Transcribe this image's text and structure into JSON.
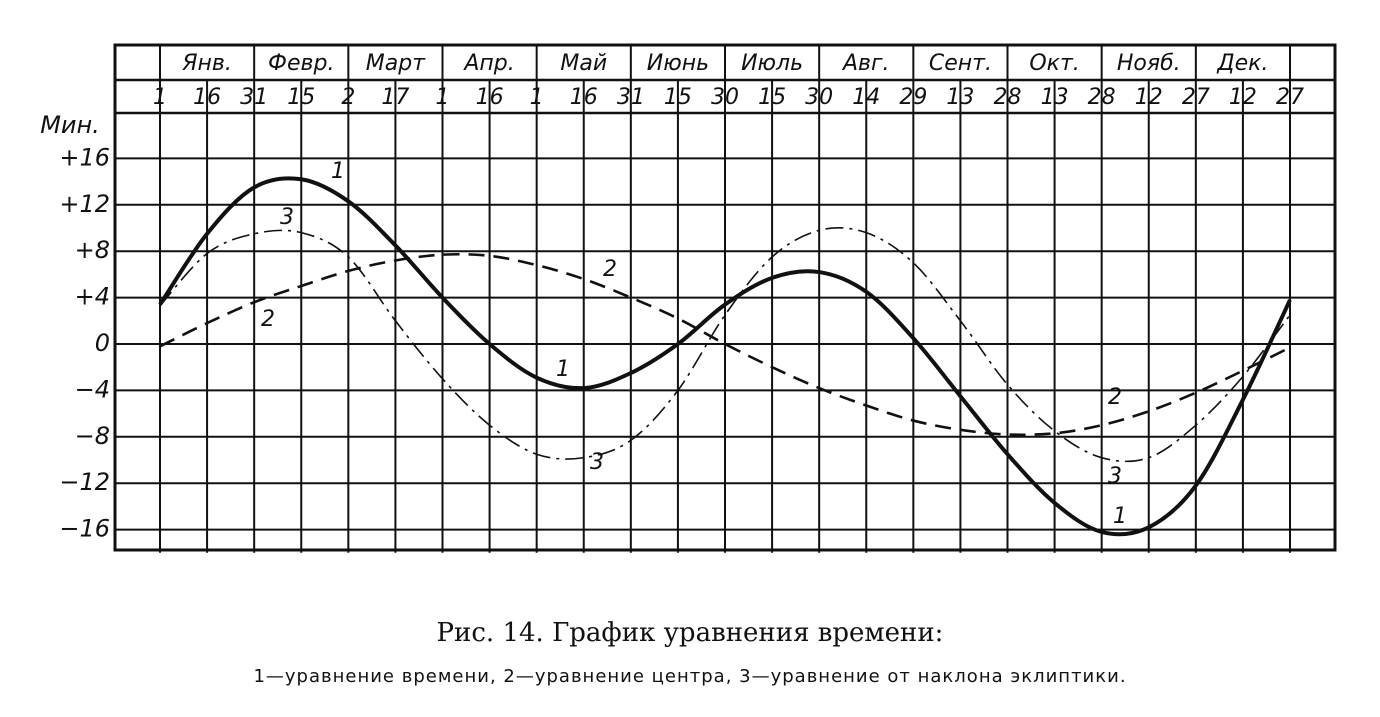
{
  "chart_data": {
    "type": "line",
    "title": "Рис. 14. График уравнения времени:",
    "subtitle": "1—уравнение времени, 2—уравнение центра, 3—уравнение от наклона эклиптики.",
    "y_label": "Мин.",
    "months": [
      "Янв.",
      "Февр.",
      "Март",
      "Апр.",
      "Май",
      "Июнь",
      "Июль",
      "Авг.",
      "Сент.",
      "Окт.",
      "Нояб.",
      "Дек."
    ],
    "categories": [
      "1",
      "16",
      "31",
      "15",
      "2",
      "17",
      "1",
      "16",
      "1",
      "16",
      "31",
      "15",
      "30",
      "15",
      "30",
      "14",
      "29",
      "13",
      "28",
      "13",
      "28",
      "12",
      "27",
      "12",
      "27"
    ],
    "ylim": [
      -18,
      20
    ],
    "yticks": [
      {
        "value": 16,
        "label": "+16"
      },
      {
        "value": 12,
        "label": "+12"
      },
      {
        "value": 8,
        "label": "+8"
      },
      {
        "value": 4,
        "label": "+4"
      },
      0,
      {
        "value": -4,
        "label": "−4"
      },
      {
        "value": -8,
        "label": "−8"
      },
      {
        "value": -12,
        "label": "−12"
      },
      {
        "value": -16,
        "label": "−16"
      }
    ],
    "grid": true,
    "series": [
      {
        "name": "1",
        "color": "#111111",
        "values": [
          3.4,
          9.5,
          13.5,
          14.2,
          12.3,
          8.5,
          4,
          0,
          -2.9,
          -3.8,
          -2.5,
          0,
          3.4,
          5.7,
          6.2,
          4.5,
          0.5,
          -4.5,
          -9.5,
          -13.7,
          -16.2,
          -15.8,
          -12.2,
          -4.8,
          3.8
        ]
      },
      {
        "name": "2",
        "color": "#111111",
        "values": [
          -0.2,
          1.8,
          3.6,
          5,
          6.3,
          7.2,
          7.7,
          7.6,
          6.8,
          5.6,
          4,
          2.2,
          0,
          -2,
          -3.8,
          -5.3,
          -6.6,
          -7.4,
          -7.8,
          -7.7,
          -7,
          -5.8,
          -4.2,
          -2.3,
          -0.3
        ]
      },
      {
        "name": "3",
        "color": "#111111",
        "values": [
          3.3,
          7.8,
          9.5,
          9.6,
          7.5,
          2,
          -3,
          -7,
          -9.5,
          -9.8,
          -8.3,
          -4,
          2.5,
          7.5,
          9.8,
          9.6,
          7,
          2,
          -3.5,
          -7.5,
          -9.8,
          -9.8,
          -7,
          -2.8,
          2.5
        ]
      }
    ]
  }
}
